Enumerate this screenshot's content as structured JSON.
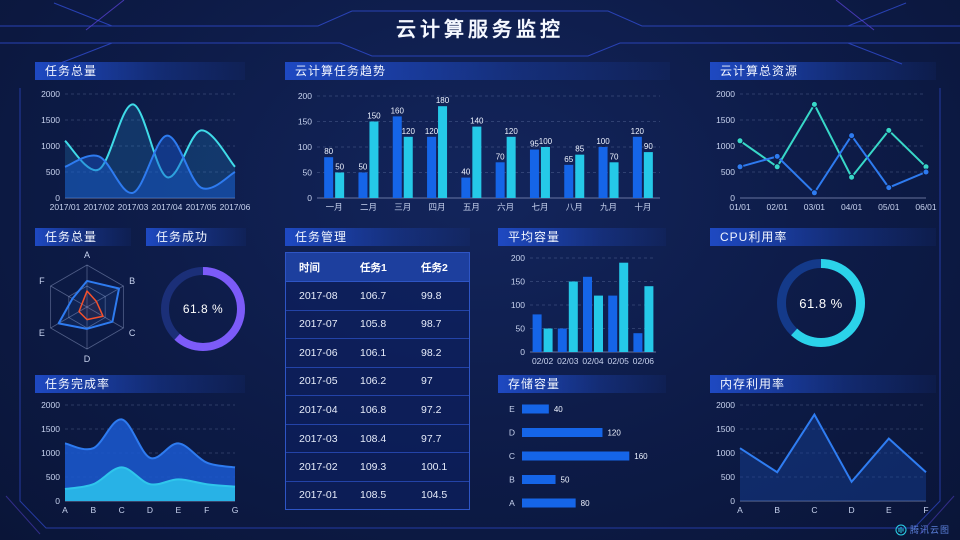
{
  "page": {
    "title": "云计算服务监控",
    "watermark": "腾讯云图"
  },
  "panels": {
    "task_total_top": {
      "title": "任务总量"
    },
    "task_trend": {
      "title": "云计算任务趋势"
    },
    "total_resources": {
      "title": "云计算总资源"
    },
    "task_total_radar": {
      "title": "任务总量"
    },
    "task_success": {
      "title": "任务成功"
    },
    "task_management": {
      "title": "任务管理"
    },
    "avg_capacity": {
      "title": "平均容量"
    },
    "cpu_usage": {
      "title": "CPU利用率"
    },
    "completion_rate": {
      "title": "任务完成率"
    },
    "storage": {
      "title": "存储容量"
    },
    "memory_usage": {
      "title": "内存利用率"
    }
  },
  "gauges": {
    "task_success_value": "61.8 %",
    "cpu_value": "61.8 %"
  },
  "table": {
    "headers": [
      "时间",
      "任务1",
      "任务2"
    ],
    "rows": [
      [
        "2017-08",
        "106.7",
        "99.8"
      ],
      [
        "2017-07",
        "105.8",
        "98.7"
      ],
      [
        "2017-06",
        "106.1",
        "98.2"
      ],
      [
        "2017-05",
        "106.2",
        "97"
      ],
      [
        "2017-04",
        "106.8",
        "97.2"
      ],
      [
        "2017-03",
        "108.4",
        "97.7"
      ],
      [
        "2017-02",
        "109.3",
        "100.1"
      ],
      [
        "2017-01",
        "108.5",
        "104.5"
      ]
    ]
  },
  "colors": {
    "accent_blue": "#1565e8",
    "accent_cyan": "#25c9e8",
    "accent_teal": "#38d8c8",
    "accent_purple": "#7c5bf8",
    "line_blue": "#2e7bf0",
    "grid": "rgba(170,185,230,0.28)"
  },
  "chart_data": [
    {
      "id": "task_total_area",
      "type": "area",
      "title": "任务总量",
      "smooth": true,
      "x": [
        "2017/01",
        "2017/02",
        "2017/03",
        "2017/04",
        "2017/05",
        "2017/06"
      ],
      "ylim": [
        0,
        2000
      ],
      "yticks": [
        0,
        500,
        1000,
        1500,
        2000
      ],
      "series": [
        {
          "name": "series-cyan",
          "color": "#3fdbe8",
          "fill": "rgba(35,150,220,0.22)",
          "values": [
            1100,
            550,
            1800,
            400,
            1300,
            600
          ]
        },
        {
          "name": "series-blue",
          "color": "#2e7bf0",
          "fill": "rgba(25,90,210,0.45)",
          "values": [
            600,
            800,
            100,
            1200,
            200,
            500
          ]
        }
      ]
    },
    {
      "id": "task_trend",
      "type": "bar",
      "title": "云计算任务趋势",
      "value_labels": true,
      "categories": [
        "一月",
        "二月",
        "三月",
        "四月",
        "五月",
        "六月",
        "七月",
        "八月",
        "九月",
        "十月"
      ],
      "ylim": [
        0,
        200
      ],
      "yticks": [
        0,
        50,
        100,
        150,
        200
      ],
      "series": [
        {
          "name": "series-blue",
          "color": "#1565e8",
          "values": [
            80,
            50,
            160,
            120,
            40,
            70,
            95,
            65,
            100,
            120
          ]
        },
        {
          "name": "series-cyan",
          "color": "#25c9e8",
          "values": [
            50,
            150,
            120,
            180,
            140,
            120,
            100,
            85,
            70,
            90
          ]
        }
      ]
    },
    {
      "id": "total_resources",
      "type": "line",
      "title": "云计算总资源",
      "markers": true,
      "smooth": false,
      "x": [
        "01/01",
        "02/01",
        "03/01",
        "04/01",
        "05/01",
        "06/01"
      ],
      "ylim": [
        0,
        2000
      ],
      "yticks": [
        0,
        500,
        1000,
        1500,
        2000
      ],
      "series": [
        {
          "name": "series-teal",
          "color": "#38d8c8",
          "values": [
            1100,
            600,
            1800,
            400,
            1300,
            600
          ]
        },
        {
          "name": "series-blue",
          "color": "#2e7bf0",
          "values": [
            600,
            800,
            100,
            1200,
            200,
            500
          ]
        }
      ]
    },
    {
      "id": "task_radar",
      "type": "radar",
      "title": "任务总量",
      "axes": [
        "A",
        "B",
        "C",
        "D",
        "E",
        "F"
      ],
      "max": 100,
      "series": [
        {
          "name": "radar-blue",
          "color": "#2e7bf0",
          "values": [
            62,
            88,
            70,
            52,
            78,
            40
          ]
        },
        {
          "name": "radar-red",
          "color": "#f4502c",
          "values": [
            38,
            26,
            44,
            30,
            22,
            14
          ]
        }
      ]
    },
    {
      "id": "task_success_gauge",
      "type": "gauge",
      "title": "任务成功",
      "value": 61.8,
      "color": "#7c5bf8",
      "track": "#1b2f78",
      "thickness": 8
    },
    {
      "id": "avg_capacity",
      "type": "bar",
      "title": "平均容量",
      "value_labels": false,
      "categories": [
        "02/02",
        "02/03",
        "02/04",
        "02/05",
        "02/06"
      ],
      "ylim": [
        0,
        200
      ],
      "yticks": [
        0,
        50,
        100,
        150,
        200
      ],
      "series": [
        {
          "name": "series-blue",
          "color": "#1565e8",
          "values": [
            80,
            50,
            160,
            120,
            40
          ]
        },
        {
          "name": "series-cyan",
          "color": "#25c9e8",
          "values": [
            50,
            150,
            120,
            190,
            140
          ]
        }
      ]
    },
    {
      "id": "cpu_gauge",
      "type": "gauge",
      "title": "CPU利用率",
      "value": 61.8,
      "color": "#2bd3ea",
      "track": "#143a8a",
      "thickness": 9
    },
    {
      "id": "completion_rate",
      "type": "area",
      "title": "任务完成率",
      "smooth": true,
      "opaque": true,
      "x": [
        "A",
        "B",
        "C",
        "D",
        "E",
        "F",
        "G"
      ],
      "ylim": [
        0,
        2000
      ],
      "yticks": [
        0,
        500,
        1000,
        1500,
        2000
      ],
      "series": [
        {
          "name": "area-blue",
          "color": "#2e7bf0",
          "fill": "rgba(27,90,210,0.85)",
          "values": [
            1200,
            1100,
            1700,
            900,
            1200,
            800,
            700
          ]
        },
        {
          "name": "area-cyan",
          "color": "#2fc6ec",
          "fill": "rgba(41,183,232,0.95)",
          "values": [
            250,
            350,
            700,
            350,
            450,
            350,
            300
          ]
        }
      ]
    },
    {
      "id": "storage",
      "type": "hbar",
      "title": "存储容量",
      "max": 170,
      "color": "#1565e8",
      "rows": [
        {
          "label": "E",
          "value": 40
        },
        {
          "label": "D",
          "value": 120
        },
        {
          "label": "C",
          "value": 160
        },
        {
          "label": "B",
          "value": 50
        },
        {
          "label": "A",
          "value": 80
        }
      ]
    },
    {
      "id": "memory_line",
      "type": "area",
      "title": "内存利用率",
      "smooth": false,
      "x": [
        "A",
        "B",
        "C",
        "D",
        "E",
        "F"
      ],
      "ylim": [
        0,
        2000
      ],
      "yticks": [
        0,
        500,
        1000,
        1500,
        2000
      ],
      "series": [
        {
          "name": "series-blue",
          "color": "#2f7df2",
          "fill": "rgba(23,70,165,0.40)",
          "values": [
            1100,
            600,
            1800,
            400,
            1300,
            600
          ]
        }
      ]
    }
  ]
}
